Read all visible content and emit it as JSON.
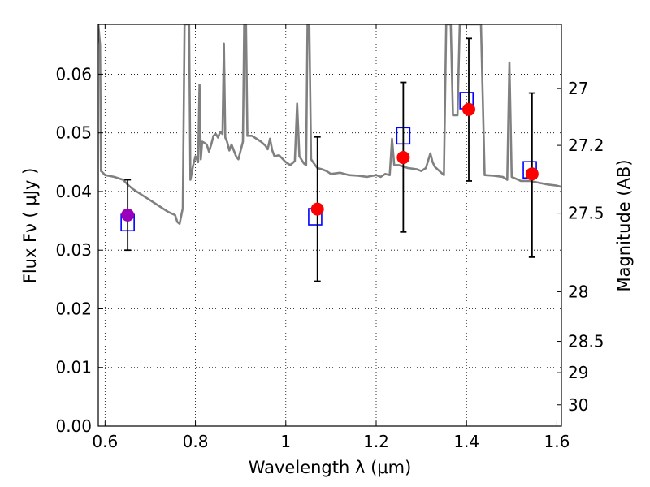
{
  "chart_data": {
    "type": "scatter",
    "xlabel": "Wavelength  λ (μm)",
    "ylabel": "Flux  Fν  ( μJy )",
    "y2label": "Magnitude (AB)",
    "xlim": [
      0.585,
      1.61
    ],
    "ylim": [
      0.0,
      0.0685
    ],
    "grid": true,
    "x_ticks": [
      0.6,
      0.8,
      1.0,
      1.2,
      1.4,
      1.6
    ],
    "x_tick_labels": [
      "0.6",
      "0.8",
      "1",
      "1.2",
      "1.4",
      "1.6"
    ],
    "y_ticks": [
      0.0,
      0.01,
      0.02,
      0.03,
      0.04,
      0.05,
      0.06
    ],
    "y_tick_labels": [
      "0.00",
      "0.01",
      "0.02",
      "0.03",
      "0.04",
      "0.05",
      "0.06"
    ],
    "mag_ticks": [
      27,
      27.2,
      27.5,
      28,
      28.5,
      29,
      30
    ],
    "mag_tick_labels": [
      "27",
      "27.2",
      "27.5",
      "28",
      "28.5",
      "29",
      "30"
    ],
    "colors": {
      "model_line": "#808080",
      "observed": "#ff0000",
      "observed_first": "#9900bb",
      "model_box": "#0000ff",
      "errorbar": "#000000"
    },
    "observed": [
      {
        "x": 0.65,
        "y": 0.036,
        "err_low": 0.03,
        "err_high": 0.042
      },
      {
        "x": 1.07,
        "y": 0.037,
        "err_low": 0.0247,
        "err_high": 0.0493
      },
      {
        "x": 1.26,
        "y": 0.0458,
        "err_low": 0.0331,
        "err_high": 0.0586
      },
      {
        "x": 1.405,
        "y": 0.054,
        "err_low": 0.0418,
        "err_high": 0.0661
      },
      {
        "x": 1.545,
        "y": 0.043,
        "err_low": 0.0288,
        "err_high": 0.0568
      }
    ],
    "model_points": [
      {
        "x": 0.65,
        "y": 0.0347
      },
      {
        "x": 1.065,
        "y": 0.0357
      },
      {
        "x": 1.26,
        "y": 0.0495
      },
      {
        "x": 1.4,
        "y": 0.0555
      },
      {
        "x": 1.54,
        "y": 0.0437
      }
    ],
    "model_sed": [
      [
        0.585,
        0.0685
      ],
      [
        0.589,
        0.065
      ],
      [
        0.591,
        0.0435
      ],
      [
        0.595,
        0.0432
      ],
      [
        0.6,
        0.0428
      ],
      [
        0.62,
        0.0425
      ],
      [
        0.64,
        0.042
      ],
      [
        0.65,
        0.0412
      ],
      [
        0.66,
        0.0405
      ],
      [
        0.68,
        0.0395
      ],
      [
        0.7,
        0.0385
      ],
      [
        0.72,
        0.0375
      ],
      [
        0.74,
        0.0365
      ],
      [
        0.755,
        0.036
      ],
      [
        0.76,
        0.0348
      ],
      [
        0.765,
        0.0345
      ],
      [
        0.772,
        0.0372
      ],
      [
        0.776,
        0.0685
      ],
      [
        0.786,
        0.0685
      ],
      [
        0.789,
        0.042
      ],
      [
        0.795,
        0.0445
      ],
      [
        0.8,
        0.046
      ],
      [
        0.806,
        0.045
      ],
      [
        0.809,
        0.0582
      ],
      [
        0.812,
        0.0455
      ],
      [
        0.815,
        0.0485
      ],
      [
        0.82,
        0.0483
      ],
      [
        0.825,
        0.048
      ],
      [
        0.83,
        0.0468
      ],
      [
        0.835,
        0.048
      ],
      [
        0.84,
        0.0495
      ],
      [
        0.845,
        0.0498
      ],
      [
        0.85,
        0.0492
      ],
      [
        0.855,
        0.0502
      ],
      [
        0.86,
        0.0498
      ],
      [
        0.863,
        0.0652
      ],
      [
        0.866,
        0.0492
      ],
      [
        0.87,
        0.0485
      ],
      [
        0.875,
        0.047
      ],
      [
        0.88,
        0.048
      ],
      [
        0.89,
        0.046
      ],
      [
        0.895,
        0.0455
      ],
      [
        0.9,
        0.047
      ],
      [
        0.905,
        0.0485
      ],
      [
        0.908,
        0.0685
      ],
      [
        0.912,
        0.0685
      ],
      [
        0.915,
        0.0495
      ],
      [
        0.925,
        0.0495
      ],
      [
        0.935,
        0.049
      ],
      [
        0.945,
        0.0485
      ],
      [
        0.955,
        0.0478
      ],
      [
        0.96,
        0.0472
      ],
      [
        0.965,
        0.049
      ],
      [
        0.97,
        0.047
      ],
      [
        0.975,
        0.046
      ],
      [
        0.985,
        0.0462
      ],
      [
        1.0,
        0.045
      ],
      [
        1.01,
        0.0445
      ],
      [
        1.02,
        0.0452
      ],
      [
        1.025,
        0.055
      ],
      [
        1.03,
        0.046
      ],
      [
        1.04,
        0.0448
      ],
      [
        1.045,
        0.0445
      ],
      [
        1.048,
        0.0685
      ],
      [
        1.052,
        0.0685
      ],
      [
        1.056,
        0.0455
      ],
      [
        1.065,
        0.0445
      ],
      [
        1.07,
        0.044
      ],
      [
        1.08,
        0.0438
      ],
      [
        1.09,
        0.0435
      ],
      [
        1.1,
        0.043
      ],
      [
        1.12,
        0.0432
      ],
      [
        1.14,
        0.0428
      ],
      [
        1.16,
        0.0427
      ],
      [
        1.18,
        0.0425
      ],
      [
        1.2,
        0.0428
      ],
      [
        1.21,
        0.0425
      ],
      [
        1.22,
        0.043
      ],
      [
        1.23,
        0.0428
      ],
      [
        1.235,
        0.049
      ],
      [
        1.24,
        0.0445
      ],
      [
        1.25,
        0.0445
      ],
      [
        1.27,
        0.044
      ],
      [
        1.29,
        0.0438
      ],
      [
        1.3,
        0.0435
      ],
      [
        1.31,
        0.044
      ],
      [
        1.32,
        0.0465
      ],
      [
        1.325,
        0.045
      ],
      [
        1.33,
        0.0442
      ],
      [
        1.34,
        0.0435
      ],
      [
        1.35,
        0.0428
      ],
      [
        1.355,
        0.0685
      ],
      [
        1.365,
        0.0685
      ],
      [
        1.37,
        0.053
      ],
      [
        1.38,
        0.053
      ],
      [
        1.385,
        0.0685
      ],
      [
        1.432,
        0.0685
      ],
      [
        1.44,
        0.0428
      ],
      [
        1.46,
        0.0427
      ],
      [
        1.48,
        0.0425
      ],
      [
        1.49,
        0.042
      ],
      [
        1.495,
        0.062
      ],
      [
        1.5,
        0.0425
      ],
      [
        1.52,
        0.0418
      ],
      [
        1.54,
        0.0418
      ],
      [
        1.56,
        0.0415
      ],
      [
        1.58,
        0.0412
      ],
      [
        1.6,
        0.041
      ],
      [
        1.61,
        0.0408
      ]
    ]
  }
}
